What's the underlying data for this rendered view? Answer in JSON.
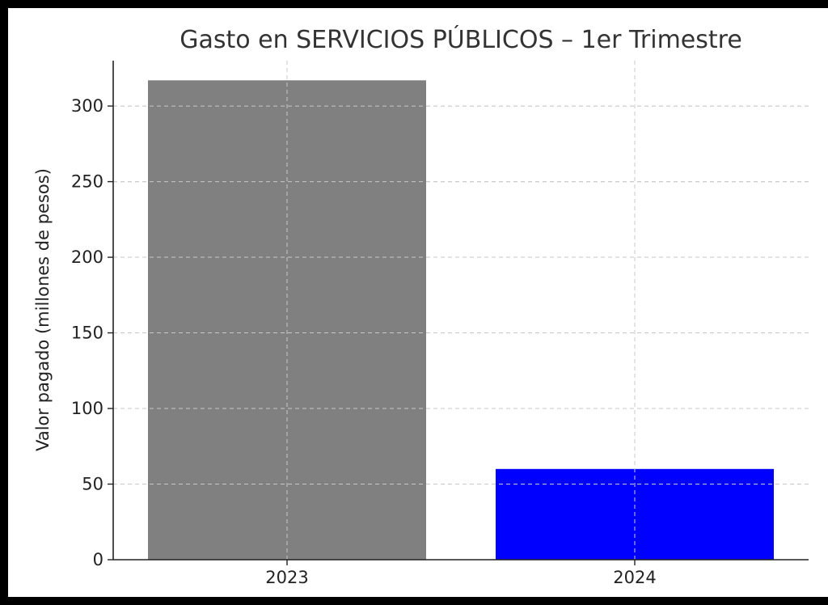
{
  "chart_data": {
    "type": "bar",
    "title": "Gasto en SERVICIOS PÚBLICOS – 1er Trimestre",
    "ylabel": "Valor pagado (millones de pesos)",
    "xlabel": "",
    "categories": [
      "2023",
      "2024"
    ],
    "values": [
      317,
      60
    ],
    "colors": [
      "#808080",
      "#0000ff"
    ],
    "ylim": [
      0,
      330
    ],
    "yticks": [
      0,
      50,
      100,
      150,
      200,
      250,
      300
    ],
    "grid": true
  }
}
